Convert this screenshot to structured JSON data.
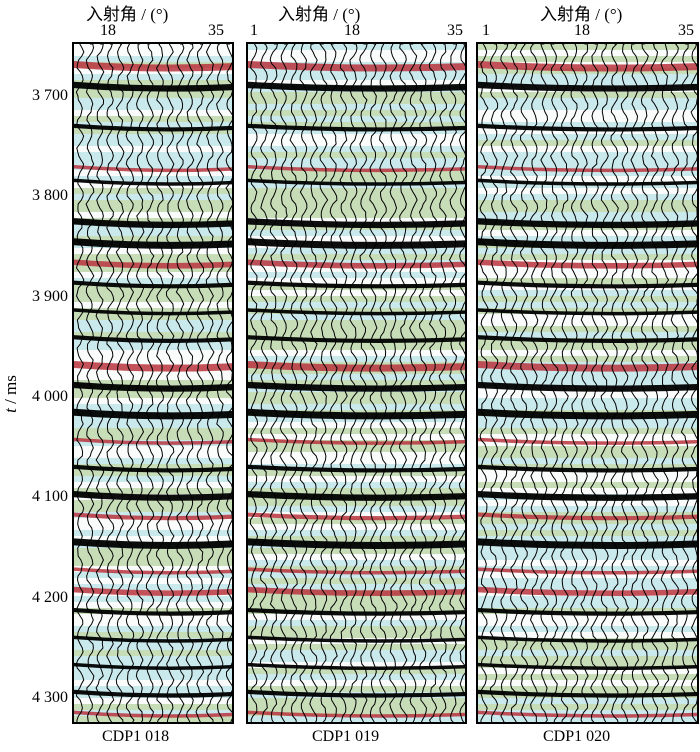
{
  "figure": {
    "panels": [
      {
        "top_label": "入射角 / (°)",
        "ticks": [
          "18",
          "35"
        ],
        "bottom_label": "CDP1 018"
      },
      {
        "top_label": "入射角 / (°)",
        "ticks": [
          "1",
          "18",
          "35"
        ],
        "bottom_label": "CDP1 019"
      },
      {
        "top_label": "入射角 / (°)",
        "ticks": [
          "1",
          "18",
          "35"
        ],
        "bottom_label": "CDP1 020"
      }
    ],
    "y_axis": {
      "label_t": "t",
      "label_unit": " / ms",
      "ticks": [
        "3 700",
        "3 800",
        "3 900",
        "4 000",
        "4 100",
        "4 200",
        "4 300"
      ],
      "values": [
        3700,
        3800,
        3900,
        4000,
        4100,
        4200,
        4300
      ],
      "range": [
        3645,
        4325
      ]
    },
    "colors": {
      "red": "#b8323c",
      "black": "#000000",
      "cyan": "#bfe6ec",
      "green": "#bcd6a5",
      "white": "#ffffff"
    }
  }
}
